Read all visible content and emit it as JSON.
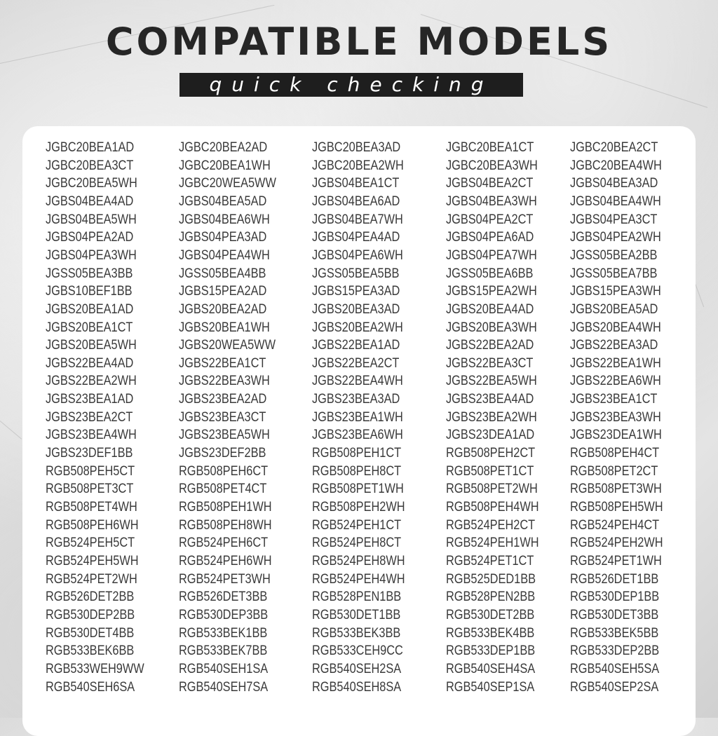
{
  "header": {
    "title": "COMPATIBLE MODELS",
    "subtitle": "quick checking"
  },
  "models": [
    [
      "JGBC20BEA1AD",
      "JGBC20BEA2AD",
      "JGBC20BEA3AD",
      "JGBC20BEA1CT",
      "JGBC20BEA2CT"
    ],
    [
      "JGBC20BEA3CT",
      "JGBC20BEA1WH",
      "JGBC20BEA2WH",
      "JGBC20BEA3WH",
      "JGBC20BEA4WH"
    ],
    [
      "JGBC20BEA5WH",
      "JGBC20WEA5WW",
      "JGBS04BEA1CT",
      "JGBS04BEA2CT",
      "JGBS04BEA3AD"
    ],
    [
      "JGBS04BEA4AD",
      "JGBS04BEA5AD",
      "JGBS04BEA6AD",
      "JGBS04BEA3WH",
      "JGBS04BEA4WH"
    ],
    [
      "JGBS04BEA5WH",
      "JGBS04BEA6WH",
      "JGBS04BEA7WH",
      "JGBS04PEA2CT",
      "JGBS04PEA3CT"
    ],
    [
      "JGBS04PEA2AD",
      "JGBS04PEA3AD",
      "JGBS04PEA4AD",
      "JGBS04PEA6AD",
      "JGBS04PEA2WH"
    ],
    [
      "JGBS04PEA3WH",
      "JGBS04PEA4WH",
      "JGBS04PEA6WH",
      "JGBS04PEA7WH",
      "JGSS05BEA2BB"
    ],
    [
      "JGSS05BEA3BB",
      "JGSS05BEA4BB",
      "JGSS05BEA5BB",
      "JGSS05BEA6BB",
      "JGSS05BEA7BB"
    ],
    [
      "JGBS10BEF1BB",
      "JGBS15PEA2AD",
      "JGBS15PEA3AD",
      "JGBS15PEA2WH",
      "JGBS15PEA3WH"
    ],
    [
      "JGBS20BEA1AD",
      "JGBS20BEA2AD",
      "JGBS20BEA3AD",
      "JGBS20BEA4AD",
      "JGBS20BEA5AD"
    ],
    [
      "JGBS20BEA1CT",
      "JGBS20BEA1WH",
      "JGBS20BEA2WH",
      "JGBS20BEA3WH",
      "JGBS20BEA4WH"
    ],
    [
      "JGBS20BEA5WH",
      "JGBS20WEA5WW",
      "JGBS22BEA1AD",
      "JGBS22BEA2AD",
      "JGBS22BEA3AD"
    ],
    [
      "JGBS22BEA4AD",
      "JGBS22BEA1CT",
      "JGBS22BEA2CT",
      "JGBS22BEA3CT",
      "JGBS22BEA1WH"
    ],
    [
      "JGBS22BEA2WH",
      "JGBS22BEA3WH",
      "JGBS22BEA4WH",
      "JGBS22BEA5WH",
      "JGBS22BEA6WH"
    ],
    [
      "JGBS23BEA1AD",
      "JGBS23BEA2AD",
      "JGBS23BEA3AD",
      "JGBS23BEA4AD",
      "JGBS23BEA1CT"
    ],
    [
      "JGBS23BEA2CT",
      "JGBS23BEA3CT",
      "JGBS23BEA1WH",
      "JGBS23BEA2WH",
      "JGBS23BEA3WH"
    ],
    [
      "JGBS23BEA4WH",
      "JGBS23BEA5WH",
      "JGBS23BEA6WH",
      "JGBS23DEA1AD",
      "JGBS23DEA1WH"
    ],
    [
      "JGBS23DEF1BB",
      "JGBS23DEF2BB",
      "RGB508PEH1CT",
      "RGB508PEH2CT",
      "RGB508PEH4CT"
    ],
    [
      "RGB508PEH5CT",
      "RGB508PEH6CT",
      "RGB508PEH8CT",
      "RGB508PET1CT",
      "RGB508PET2CT"
    ],
    [
      "RGB508PET3CT",
      "RGB508PET4CT",
      "RGB508PET1WH",
      "RGB508PET2WH",
      "RGB508PET3WH"
    ],
    [
      "RGB508PET4WH",
      "RGB508PEH1WH",
      "RGB508PEH2WH",
      "RGB508PEH4WH",
      "RGB508PEH5WH"
    ],
    [
      "RGB508PEH6WH",
      "RGB508PEH8WH",
      "RGB524PEH1CT",
      "RGB524PEH2CT",
      "RGB524PEH4CT"
    ],
    [
      "RGB524PEH5CT",
      "RGB524PEH6CT",
      "RGB524PEH8CT",
      "RGB524PEH1WH",
      "RGB524PEH2WH"
    ],
    [
      "RGB524PEH5WH",
      "RGB524PEH6WH",
      "RGB524PEH8WH",
      "RGB524PET1CT",
      "RGB524PET1WH"
    ],
    [
      "RGB524PET2WH",
      "RGB524PET3WH",
      "RGB524PEH4WH",
      "RGB525DED1BB",
      "RGB526DET1BB"
    ],
    [
      "RGB526DET2BB",
      "RGB526DET3BB",
      "RGB528PEN1BB",
      "RGB528PEN2BB",
      "RGB530DEP1BB"
    ],
    [
      "RGB530DEP2BB",
      "RGB530DEP3BB",
      "RGB530DET1BB",
      "RGB530DET2BB",
      "RGB530DET3BB"
    ],
    [
      "RGB530DET4BB",
      "RGB533BEK1BB",
      "RGB533BEK3BB",
      "RGB533BEK4BB",
      "RGB533BEK5BB"
    ],
    [
      "RGB533BEK6BB",
      "RGB533BEK7BB",
      "RGB533CEH9CC",
      "RGB533DEP1BB",
      "RGB533DEP2BB"
    ],
    [
      "RGB533WEH9WW",
      "RGB540SEH1SA",
      "RGB540SEH2SA",
      "RGB540SEH4SA",
      "RGB540SEH5SA"
    ],
    [
      "RGB540SEH6SA",
      "RGB540SEH7SA",
      "RGB540SEH8SA",
      "RGB540SEP1SA",
      "RGB540SEP2SA"
    ]
  ],
  "colors": {
    "title": "#262626",
    "subtitle_bar": "#1e1e1e",
    "card": "#ffffff",
    "text": "#3a3a3a"
  }
}
